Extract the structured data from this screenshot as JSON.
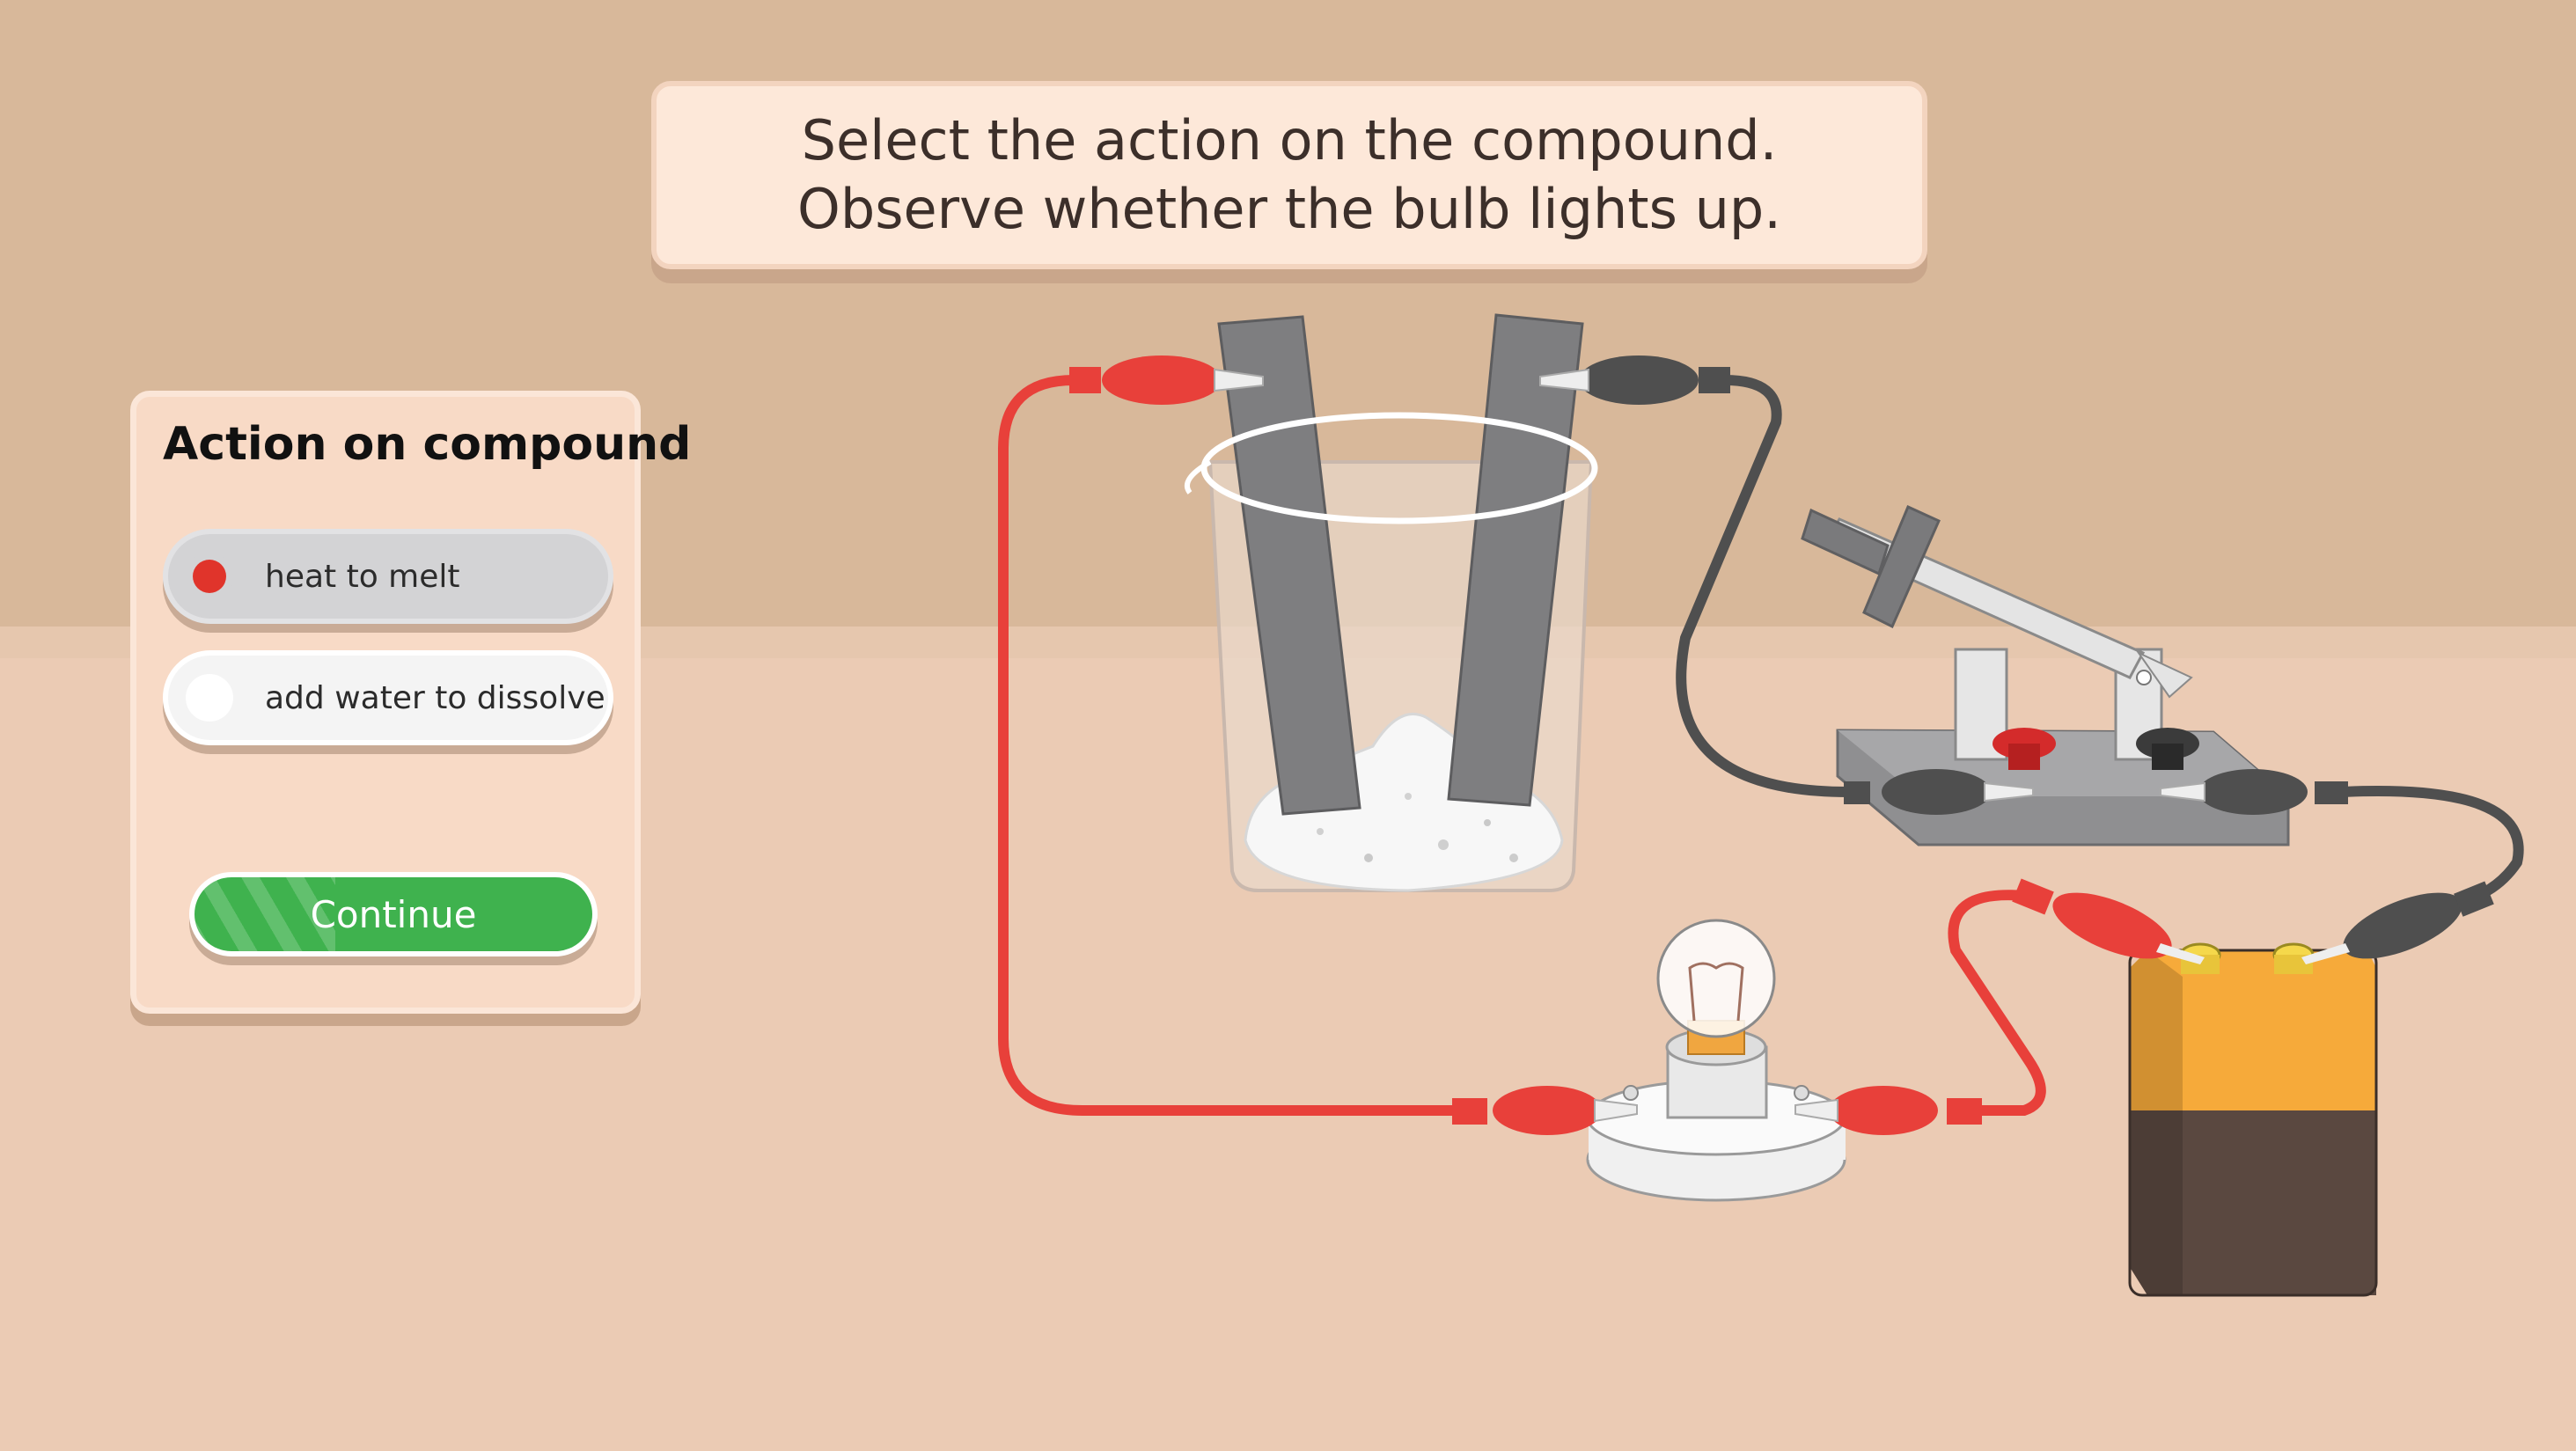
{
  "instruction": {
    "line1": "Select the action on the compound.",
    "line2": "Observe whether the bulb lights up."
  },
  "panel": {
    "title": "Action on compound",
    "options": [
      {
        "label": "heat to melt",
        "selected": true
      },
      {
        "label": "add water to dissolve",
        "selected": false
      }
    ],
    "continue_label": "Continue"
  },
  "colors": {
    "accent_red": "#e0342b",
    "accent_green": "#3fb24e",
    "wire_red": "#e8403a",
    "wire_dark": "#4f4f4f",
    "battery_orange": "#f6aa3a",
    "battery_brown": "#5a4840"
  }
}
